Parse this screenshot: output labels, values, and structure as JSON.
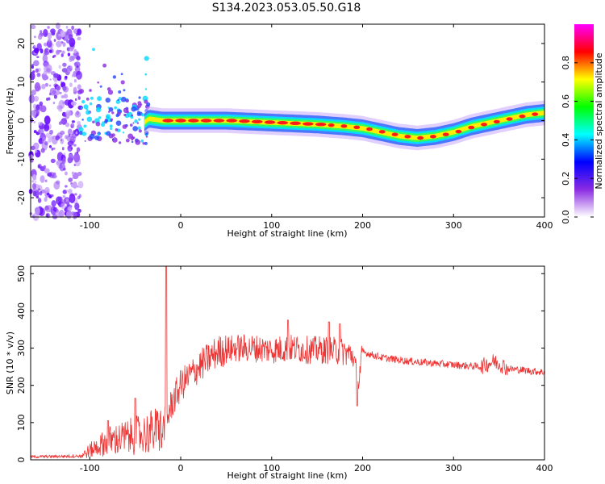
{
  "title": "S134.2023.053.05.50.G18",
  "chart_data": [
    {
      "type": "heatmap",
      "xlabel": "Height of straight line (km)",
      "ylabel": "Frequency (Hz)",
      "xlim": [
        -165,
        400
      ],
      "ylim": [
        -25,
        25
      ],
      "xticks": [
        -100,
        0,
        100,
        200,
        300,
        400
      ],
      "yticks": [
        -20,
        -10,
        0,
        10,
        20
      ],
      "colorbar": {
        "label": "Normalized spectral amplitude",
        "range": [
          0,
          1
        ],
        "ticks": [
          0.0,
          0.2,
          0.4,
          0.6,
          0.8
        ],
        "colormap": [
          "#ffffff",
          "#8a2be2",
          "#0000ff",
          "#00ffff",
          "#00ff00",
          "#ffff00",
          "#ff0000",
          "#ff00ff"
        ]
      },
      "ridge": {
        "x": [
          -60,
          -45,
          -35,
          -20,
          0,
          50,
          100,
          150,
          180,
          200,
          220,
          240,
          260,
          280,
          300,
          320,
          340,
          360,
          380,
          400
        ],
        "freq": [
          0.5,
          -1.5,
          0.5,
          0.0,
          0.0,
          0.0,
          -0.5,
          -1.0,
          -1.5,
          -2.0,
          -3.0,
          -4.0,
          -4.5,
          -4.0,
          -3.0,
          -1.5,
          -0.5,
          0.5,
          1.5,
          2.0
        ]
      }
    },
    {
      "type": "line",
      "xlabel": "Height of straight line (km)",
      "ylabel": "SNR (10 * v/v)",
      "xlim": [
        -165,
        400
      ],
      "ylim": [
        0,
        520
      ],
      "xticks": [
        -100,
        0,
        100,
        200,
        300,
        400
      ],
      "yticks": [
        0,
        100,
        200,
        300,
        400,
        500
      ],
      "series": [
        {
          "color": "#ee3333",
          "envelope": {
            "x": [
              -165,
              -110,
              -100,
              -80,
              -60,
              -40,
              -20,
              -15,
              -10,
              0,
              20,
              40,
              60,
              80,
              100,
              120,
              140,
              160,
              180,
              190,
              195,
              200,
              220,
              250,
              300,
              330,
              345,
              360,
              400
            ],
            "y": [
              8,
              10,
              25,
              50,
              60,
              70,
              85,
              110,
              150,
              200,
              250,
              290,
              300,
              300,
              295,
              300,
              295,
              295,
              290,
              280,
              200,
              290,
              275,
              265,
              255,
              250,
              265,
              245,
              235
            ]
          },
          "spikes": [
            {
              "x": -16,
              "y": 520
            },
            {
              "x": -50,
              "y": 165
            },
            {
              "x": -80,
              "y": 105
            },
            {
              "x": 118,
              "y": 375
            },
            {
              "x": 163,
              "y": 370
            },
            {
              "x": 175,
              "y": 365
            },
            {
              "x": 194,
              "y": 145
            }
          ]
        }
      ]
    }
  ]
}
